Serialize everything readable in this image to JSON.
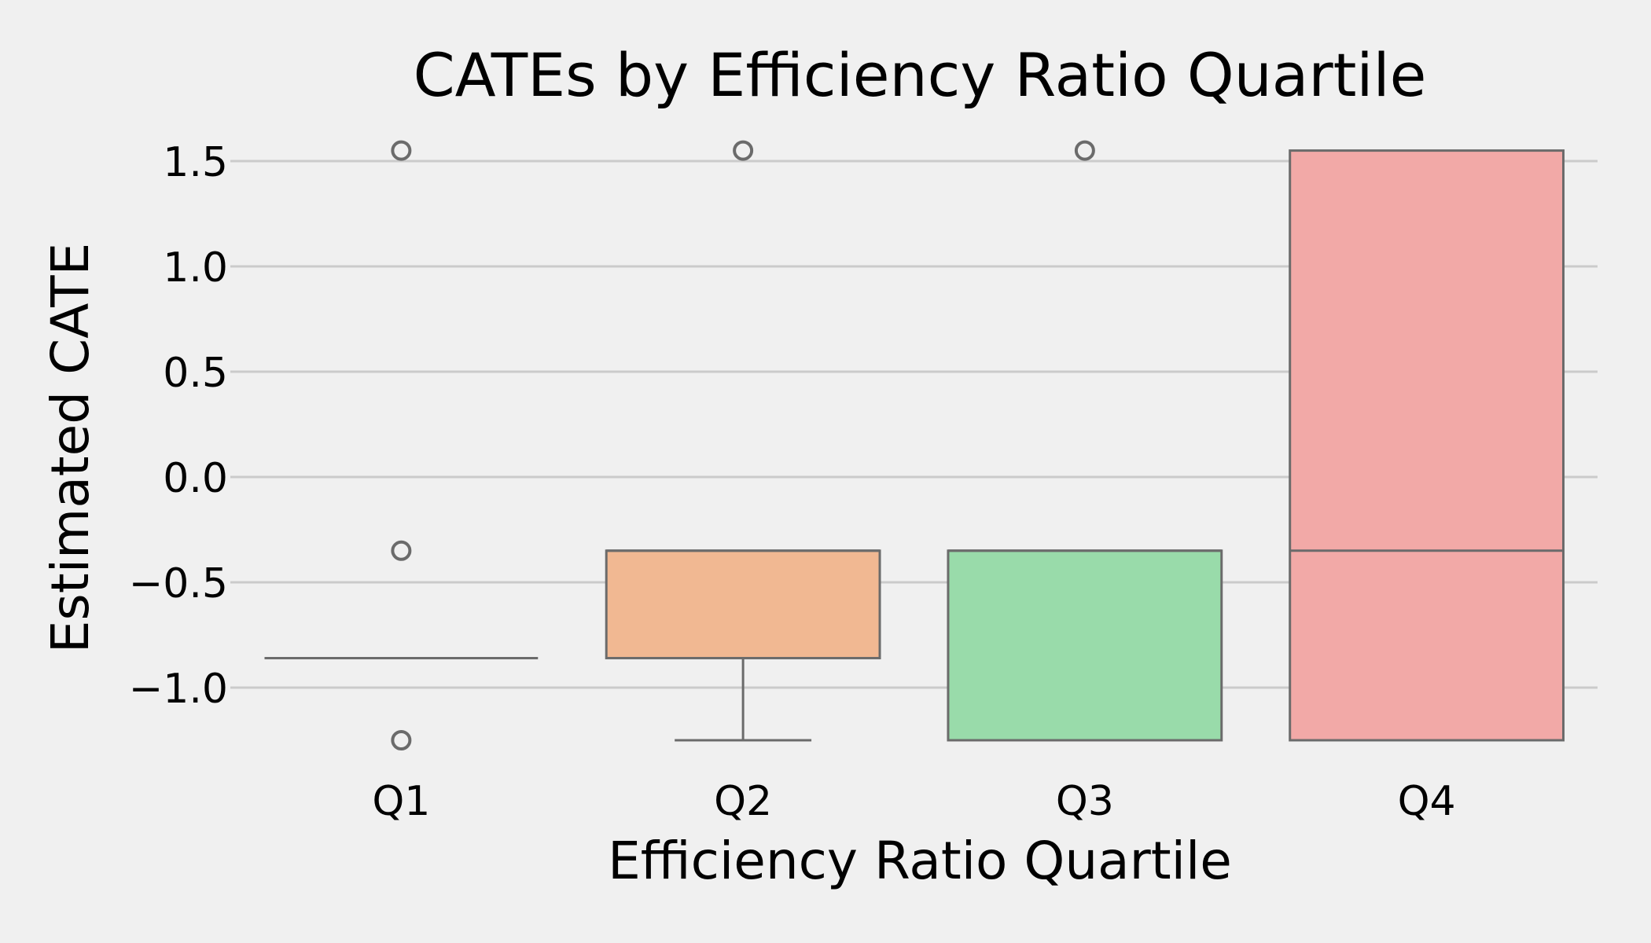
{
  "chart_data": {
    "type": "box",
    "title": "CATEs by Efficiency Ratio Quartile",
    "xlabel": "Efficiency Ratio Quartile",
    "ylabel": "Estimated CATE",
    "ylim": [
      -1.33,
      1.62
    ],
    "yticks": [
      1.5,
      1.0,
      0.5,
      0.0,
      -0.5,
      -1.0
    ],
    "ytick_labels": [
      "1.5",
      "1.0",
      "0.5",
      "0.0",
      "−0.5",
      "−1.0"
    ],
    "grid": "horizontal",
    "categories": [
      "Q1",
      "Q2",
      "Q3",
      "Q4"
    ],
    "boxes": [
      {
        "category": "Q1",
        "q1": -0.86,
        "median": -0.86,
        "q3": -0.86,
        "whisker_low": -0.86,
        "whisker_high": -0.86,
        "outliers": [
          1.55,
          -0.35,
          -1.25
        ],
        "color": "#c8c8c8"
      },
      {
        "category": "Q2",
        "q1": -0.86,
        "median": -0.35,
        "q3": -0.35,
        "whisker_low": -1.25,
        "whisker_high": -0.35,
        "outliers": [
          1.55
        ],
        "color": "#f1b892"
      },
      {
        "category": "Q3",
        "q1": -1.25,
        "median": -0.35,
        "q3": -0.35,
        "whisker_low": -1.25,
        "whisker_high": -0.35,
        "outliers": [
          1.55
        ],
        "color": "#99dbaa"
      },
      {
        "category": "Q4",
        "q1": -1.25,
        "median": -0.35,
        "q3": 1.55,
        "whisker_low": -1.25,
        "whisker_high": 1.55,
        "outliers": [],
        "color": "#f2a9a7"
      }
    ],
    "colors": {
      "background": "#f0f0f0",
      "grid": "#cbcbcb",
      "box_edge": "#6b6b6b"
    }
  }
}
